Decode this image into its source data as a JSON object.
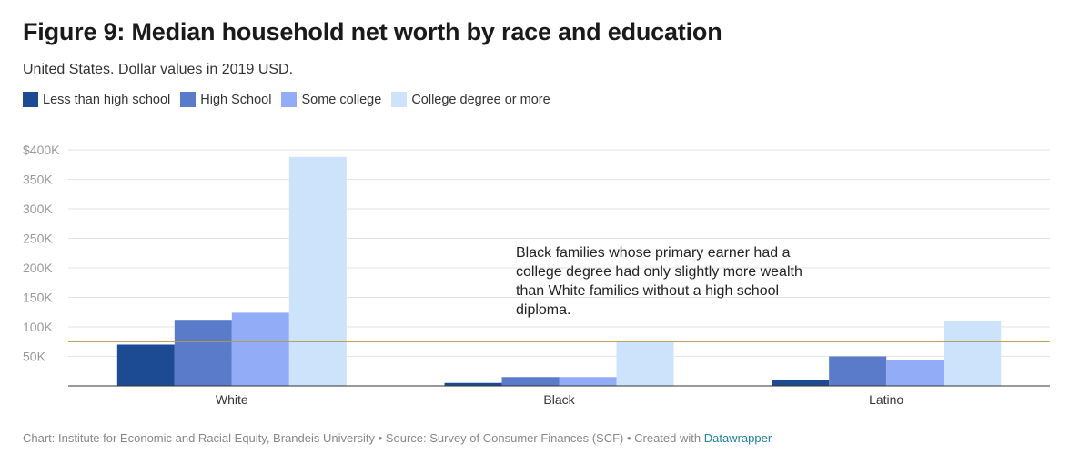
{
  "chart_data": {
    "type": "bar",
    "title": "Figure 9: Median household net worth by race and education",
    "subtitle": "United States. Dollar values in 2019 USD.",
    "categories": [
      "White",
      "Black",
      "Latino"
    ],
    "series": [
      {
        "name": "Less than high school",
        "color": "#1c4a93",
        "values": [
          70000,
          5000,
          10000
        ]
      },
      {
        "name": "High School",
        "color": "#5a7bc9",
        "values": [
          112000,
          15000,
          50000
        ]
      },
      {
        "name": "Some college",
        "color": "#92acf7",
        "values": [
          124000,
          15000,
          44000
        ]
      },
      {
        "name": "College degree or more",
        "color": "#cde3fb",
        "values": [
          388000,
          75000,
          110000
        ]
      }
    ],
    "y_ticks": [
      {
        "value": 400000,
        "label": "$400K"
      },
      {
        "value": 350000,
        "label": "350K"
      },
      {
        "value": 300000,
        "label": "300K"
      },
      {
        "value": 250000,
        "label": "250K"
      },
      {
        "value": 200000,
        "label": "200K"
      },
      {
        "value": 150000,
        "label": "150K"
      },
      {
        "value": 100000,
        "label": "100K"
      },
      {
        "value": 50000,
        "label": "50K"
      }
    ],
    "ylim": [
      0,
      400000
    ],
    "reference_line": {
      "value": 75000,
      "color": "#b59a3c"
    },
    "annotation": {
      "lines": [
        "Black families whose primary earner had a",
        "college degree had only slightly more wealth",
        "than White families without a high school",
        "diploma."
      ]
    },
    "grid": true,
    "legend_position": "top-left"
  },
  "footer": {
    "text": "Chart: Institute for Economic and Racial Equity, Brandeis University • Source: Survey of Consumer Finances (SCF) • Created with ",
    "link": "Datawrapper"
  }
}
